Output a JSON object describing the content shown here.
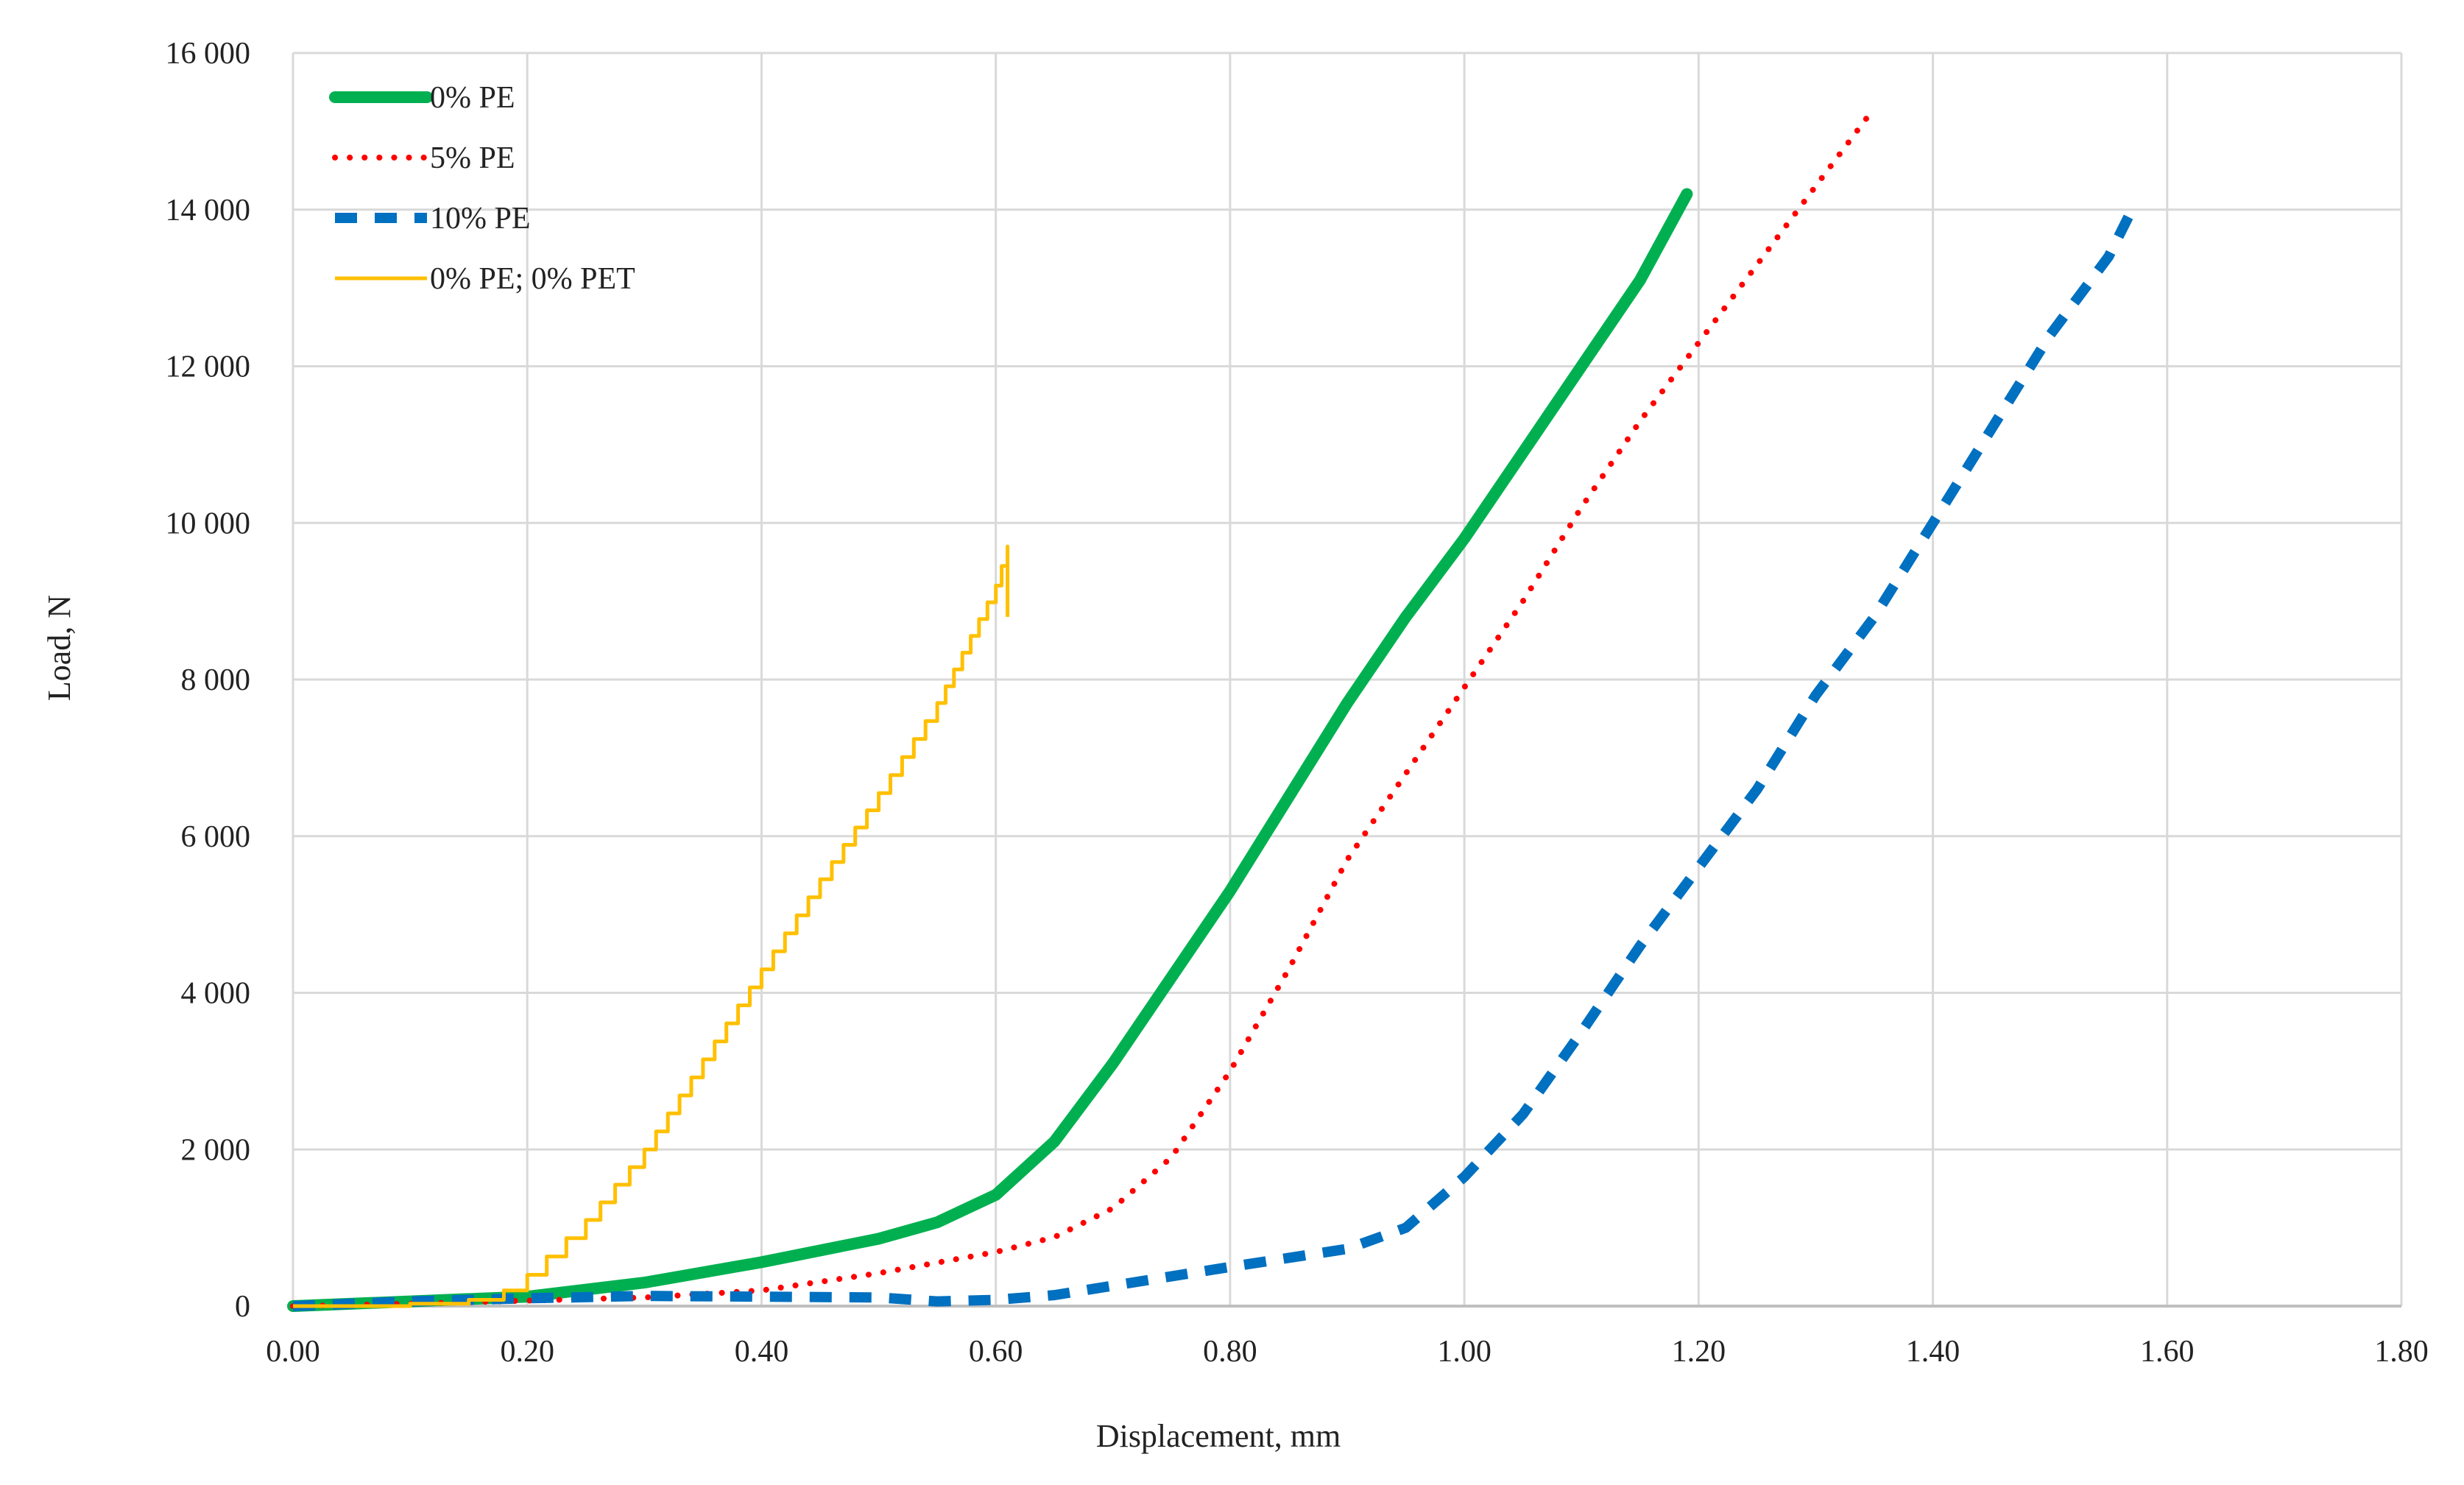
{
  "chart_data": {
    "type": "line",
    "title": "",
    "xlabel": "Displacement,  mm",
    "ylabel": "Load, N",
    "xlim": [
      0,
      1.8
    ],
    "ylim": [
      0,
      16000
    ],
    "x_ticks": [
      "0.00",
      "0.20",
      "0.40",
      "0.60",
      "0.80",
      "1.00",
      "1.20",
      "1.40",
      "1.60",
      "1.80"
    ],
    "y_ticks": [
      "0",
      "2 000",
      "4 000",
      "6 000",
      "8 000",
      "10 000",
      "12 000",
      "14 000",
      "16 000"
    ],
    "grid": true,
    "legend_position": "top-left",
    "series": [
      {
        "name": "0% PE",
        "color": "#00b050",
        "style": "solid-thick",
        "points": [
          [
            0,
            0
          ],
          [
            0.1,
            60
          ],
          [
            0.2,
            120
          ],
          [
            0.3,
            300
          ],
          [
            0.4,
            560
          ],
          [
            0.5,
            860
          ],
          [
            0.55,
            1070
          ],
          [
            0.6,
            1420
          ],
          [
            0.65,
            2100
          ],
          [
            0.7,
            3100
          ],
          [
            0.75,
            4200
          ],
          [
            0.8,
            5300
          ],
          [
            0.85,
            6500
          ],
          [
            0.9,
            7700
          ],
          [
            0.95,
            8800
          ],
          [
            1.0,
            9800
          ],
          [
            1.05,
            10900
          ],
          [
            1.1,
            12000
          ],
          [
            1.15,
            13100
          ],
          [
            1.19,
            14200
          ]
        ]
      },
      {
        "name": "5% PE",
        "color": "#ff0000",
        "style": "dotted",
        "points": [
          [
            0,
            0
          ],
          [
            0.1,
            30
          ],
          [
            0.2,
            70
          ],
          [
            0.3,
            110
          ],
          [
            0.4,
            200
          ],
          [
            0.5,
            420
          ],
          [
            0.6,
            690
          ],
          [
            0.65,
            880
          ],
          [
            0.7,
            1250
          ],
          [
            0.75,
            1900
          ],
          [
            0.8,
            3000
          ],
          [
            0.85,
            4300
          ],
          [
            0.9,
            5700
          ],
          [
            0.95,
            6800
          ],
          [
            1.0,
            7900
          ],
          [
            1.05,
            9000
          ],
          [
            1.1,
            10200
          ],
          [
            1.15,
            11300
          ],
          [
            1.2,
            12300
          ],
          [
            1.25,
            13300
          ],
          [
            1.3,
            14300
          ],
          [
            1.35,
            15300
          ]
        ]
      },
      {
        "name": "10% PE",
        "color": "#0070c0",
        "style": "dashed-thick",
        "points": [
          [
            0,
            0
          ],
          [
            0.1,
            60
          ],
          [
            0.2,
            100
          ],
          [
            0.3,
            130
          ],
          [
            0.4,
            120
          ],
          [
            0.5,
            110
          ],
          [
            0.55,
            60
          ],
          [
            0.6,
            80
          ],
          [
            0.65,
            140
          ],
          [
            0.7,
            260
          ],
          [
            0.8,
            500
          ],
          [
            0.9,
            730
          ],
          [
            0.95,
            1000
          ],
          [
            1.0,
            1650
          ],
          [
            1.05,
            2450
          ],
          [
            1.1,
            3500
          ],
          [
            1.15,
            4600
          ],
          [
            1.2,
            5600
          ],
          [
            1.25,
            6600
          ],
          [
            1.3,
            7800
          ],
          [
            1.35,
            8800
          ],
          [
            1.4,
            10000
          ],
          [
            1.45,
            11200
          ],
          [
            1.5,
            12400
          ],
          [
            1.55,
            13400
          ],
          [
            1.57,
            14000
          ]
        ]
      },
      {
        "name": "0% PE; 0% PET",
        "color": "#ffc000",
        "style": "solid-thin-stepped",
        "points": [
          [
            0,
            0
          ],
          [
            0.1,
            30
          ],
          [
            0.15,
            80
          ],
          [
            0.18,
            200
          ],
          [
            0.2,
            400
          ],
          [
            0.25,
            1100
          ],
          [
            0.3,
            2000
          ],
          [
            0.35,
            3150
          ],
          [
            0.4,
            4300
          ],
          [
            0.45,
            5450
          ],
          [
            0.5,
            6550
          ],
          [
            0.55,
            7700
          ],
          [
            0.6,
            9200
          ],
          [
            0.61,
            9700
          ],
          [
            0.61,
            8800
          ]
        ]
      }
    ]
  }
}
